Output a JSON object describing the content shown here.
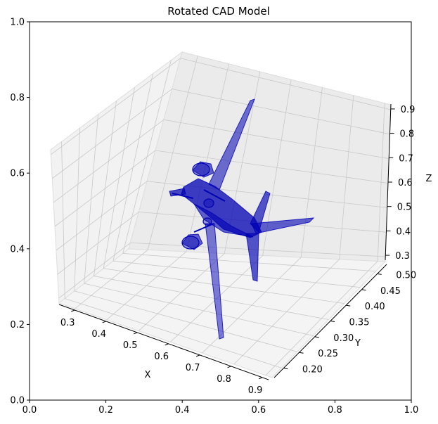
{
  "chart_data": {
    "type": "3d-mesh",
    "title": "Rotated CAD Model",
    "outer_axes": {
      "xticks": [
        "0.0",
        "0.2",
        "0.4",
        "0.6",
        "0.8",
        "1.0"
      ],
      "yticks": [
        "0.0",
        "0.2",
        "0.4",
        "0.6",
        "0.8",
        "1.0"
      ]
    },
    "axes3d": {
      "xlabel": "X",
      "ylabel": "Y",
      "zlabel": "Z",
      "xticks": [
        "0.3",
        "0.4",
        "0.5",
        "0.6",
        "0.7",
        "0.8",
        "0.9"
      ],
      "yticks": [
        "0.20",
        "0.25",
        "0.30",
        "0.35",
        "0.40",
        "0.45",
        "0.50"
      ],
      "zticks": [
        "0.3",
        "0.4",
        "0.5",
        "0.6",
        "0.7",
        "0.8",
        "0.9"
      ],
      "xlim": [
        0.25,
        0.92
      ],
      "ylim": [
        0.17,
        0.53
      ],
      "zlim": [
        0.28,
        0.92
      ],
      "grid": true
    },
    "mesh": {
      "color": "#0000b4",
      "description_parts": [
        "fuselage",
        "main-wings",
        "tail-fins",
        "engines",
        "propellers"
      ]
    }
  }
}
